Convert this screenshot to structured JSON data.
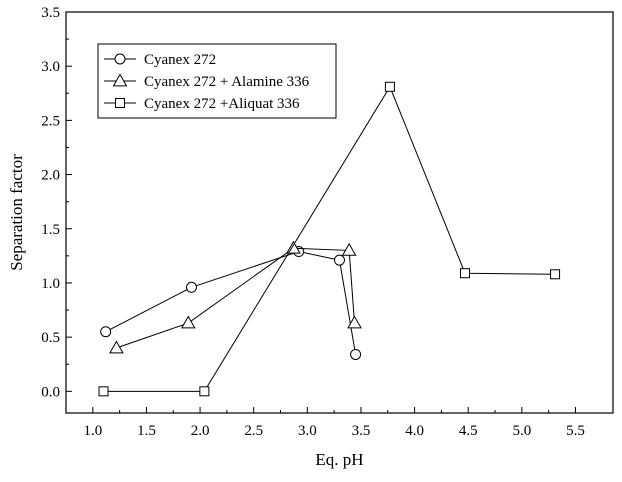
{
  "chart_data": {
    "type": "line",
    "xlabel": "Eq. pH",
    "ylabel": "Separation factor",
    "xlim": [
      0.75,
      5.85
    ],
    "ylim": [
      -0.2,
      3.5
    ],
    "xticks": [
      1.0,
      1.5,
      2.0,
      2.5,
      3.0,
      3.5,
      4.0,
      4.5,
      5.0,
      5.5
    ],
    "xtick_labels": [
      "1.0",
      "1.5",
      "2.0",
      "2.5",
      "3.0",
      "3.5",
      "4.0",
      "4.5",
      "5.0",
      "5.5"
    ],
    "yticks": [
      0.0,
      0.5,
      1.0,
      1.5,
      2.0,
      2.5,
      3.0,
      3.5
    ],
    "ytick_labels": [
      "0.0",
      "0.5",
      "1.0",
      "1.5",
      "2.0",
      "2.5",
      "3.0",
      "3.5"
    ],
    "grid": false,
    "legend_position": "top-left",
    "series": [
      {
        "name": "Cyanex 272",
        "marker": "circle",
        "x": [
          1.12,
          1.92,
          2.92,
          3.3,
          3.45
        ],
        "y": [
          0.55,
          0.96,
          1.29,
          1.21,
          0.34
        ]
      },
      {
        "name": "Cyanex 272 + Alamine 336",
        "marker": "triangle",
        "x": [
          1.22,
          1.89,
          2.87,
          3.39,
          3.44
        ],
        "y": [
          0.4,
          0.63,
          1.32,
          1.3,
          0.63
        ]
      },
      {
        "name": "Cyanex 272 +Aliquat 336",
        "marker": "square",
        "x": [
          1.1,
          2.04,
          3.77,
          4.47,
          5.31
        ],
        "y": [
          0.0,
          0.0,
          2.81,
          1.09,
          1.08
        ]
      }
    ]
  }
}
